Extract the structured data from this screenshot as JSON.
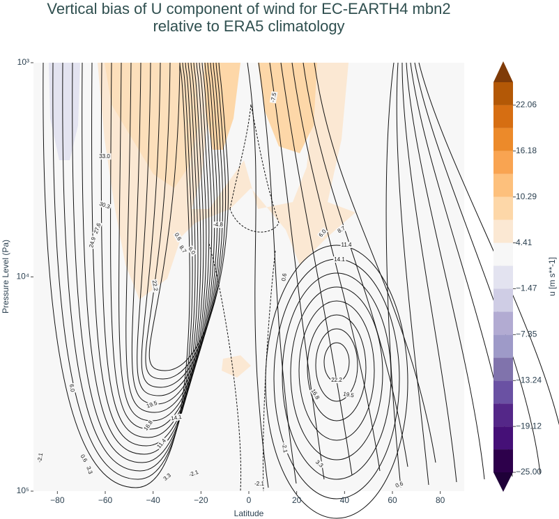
{
  "chart_data": {
    "type": "contour",
    "title_lines": [
      "Vertical bias of U component of wind for EC-EARTH4 mbn2",
      "relative to ERA5 climatology"
    ],
    "x_label": "Latitude",
    "y_label": "Pressure Level (Pa)",
    "xlim": [
      -90,
      90
    ],
    "xticks": [
      {
        "value": -80,
        "label": "−80"
      },
      {
        "value": -60,
        "label": "−60"
      },
      {
        "value": -40,
        "label": "−40"
      },
      {
        "value": -20,
        "label": "−20"
      },
      0,
      20,
      40,
      60,
      80
    ],
    "ylim": [
      100000,
      1000
    ],
    "log_y": true,
    "yticks": [
      {
        "value": 1000,
        "label": "10³"
      },
      {
        "value": 10000,
        "label": "10⁴"
      },
      {
        "value": 100000,
        "label": "10⁵"
      }
    ],
    "colorbar": {
      "label": "u [m s**-1]",
      "lim": [
        -25,
        25
      ],
      "colors": [
        "#2d004b",
        "#451077",
        "#542788",
        "#6a51a3",
        "#8073ac",
        "#9e9ac8",
        "#b2abd2",
        "#cfcde5",
        "#e3e3f0",
        "#f7f7f7",
        "#fbe8d3",
        "#fdd7a8",
        "#fdc07c",
        "#f9a451",
        "#ec8a2a",
        "#d66e12",
        "#b35806"
      ],
      "extend_colors": [
        "#7f3b08",
        "#1f0038"
      ],
      "ticks": [
        22.06,
        16.18,
        10.29,
        4.41,
        {
          "value": -1.47,
          "label": "−1.47"
        },
        {
          "value": -7.35,
          "label": "−7.35"
        },
        {
          "value": -13.24,
          "label": "−13.24"
        },
        {
          "value": -19.12,
          "label": "−19.12"
        },
        {
          "value": -25,
          "label": "−25.00"
        }
      ]
    },
    "contour_labels": [
      "33.0",
      "30.3",
      "27.6",
      "24.9",
      "22.2",
      "0.6",
      "8.7",
      "6.0",
      "-4.8",
      "-7.5",
      "6.0",
      "8.7",
      "11.4",
      "14.1",
      "0.6",
      "22.2",
      "19.5",
      "16.8",
      "6.0",
      "19.5",
      "16.8",
      "14.1",
      "11.4",
      "3.3",
      "-2.1",
      "0.6",
      "3.3",
      "-2.1",
      "-2.1",
      "-2.1",
      "3.3",
      "0.6"
    ]
  }
}
